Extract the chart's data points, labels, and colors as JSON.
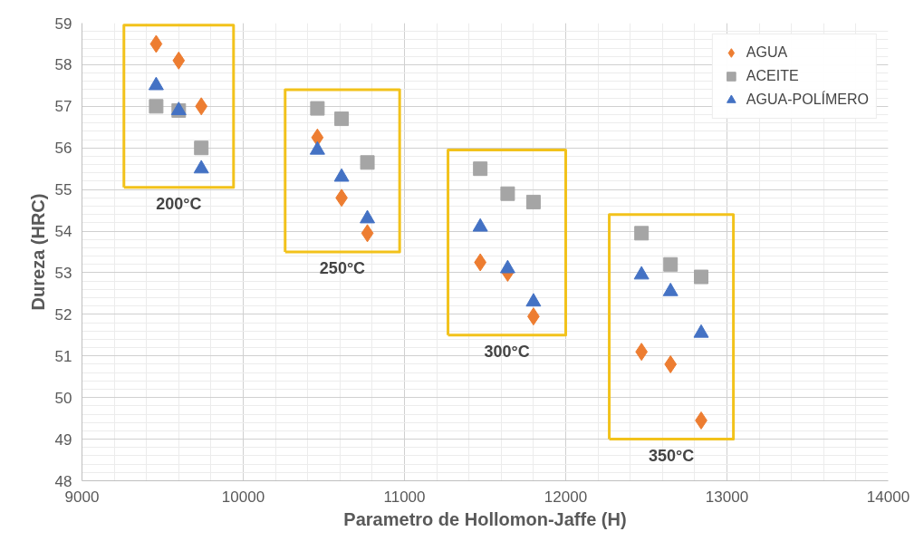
{
  "chart_data": {
    "type": "scatter",
    "xlabel": "Parametro de Hollomon-Jaffe (H)",
    "ylabel": "Dureza (HRC)",
    "x": [
      9460,
      9600,
      9740,
      10460,
      10610,
      10770,
      11470,
      11640,
      11800,
      12470,
      12650,
      12840
    ],
    "series": [
      {
        "name": "AGUA",
        "color": "#ed7d31",
        "marker": "diamond",
        "values": [
          58.5,
          58.1,
          57.0,
          56.25,
          54.8,
          53.95,
          53.25,
          53.0,
          51.95,
          51.1,
          50.8,
          49.45
        ]
      },
      {
        "name": "ACEITE",
        "color": "#a5a5a5",
        "marker": "square",
        "values": [
          57.0,
          56.9,
          56.0,
          56.95,
          56.7,
          55.65,
          55.5,
          54.9,
          54.7,
          53.95,
          53.2,
          52.9
        ]
      },
      {
        "name": "AGUA-POLÍMERO",
        "color": "#4472c4",
        "marker": "triangle",
        "values": [
          57.5,
          56.9,
          55.5,
          55.95,
          55.3,
          54.3,
          54.1,
          53.1,
          52.3,
          52.95,
          52.55,
          51.55
        ]
      }
    ],
    "annotations": [
      "200°C",
      "250°C",
      "300°C",
      "350°C"
    ],
    "xlim": [
      9000,
      14000
    ],
    "xticks": [
      9000,
      10000,
      11000,
      12000,
      13000,
      14000
    ],
    "ylim": [
      48,
      59
    ],
    "yticks": [
      48,
      49,
      50,
      51,
      52,
      53,
      54,
      55,
      56,
      57,
      58,
      59
    ],
    "grid": true,
    "legend": "top right"
  }
}
